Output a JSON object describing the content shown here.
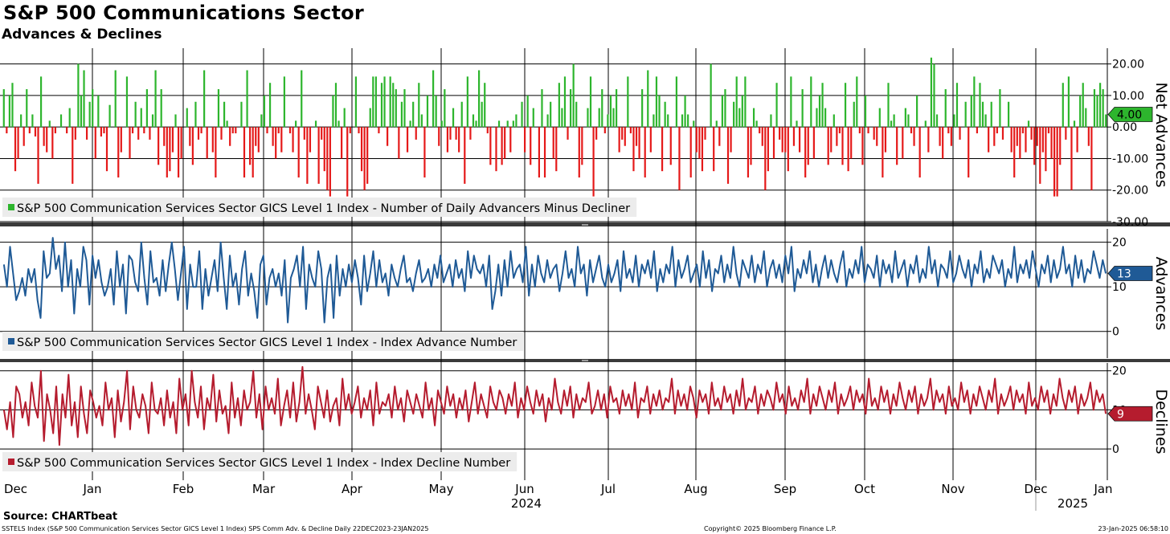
{
  "header": {
    "title": "S&P 500 Communications Sector",
    "subtitle": "Advances & Declines"
  },
  "footer": {
    "source": "Source: CHARTbeat",
    "description": "SSTELS Index (S&P 500 Communication Services Sector GICS Level 1 Index) SPS Comm Adv. & Decline  Daily 22DEC2023-23JAN2025",
    "copyright": "Copyright© 2025 Bloomberg Finance L.P.",
    "timestamp": "23-Jan-2025 06:58:10"
  },
  "colors": {
    "net_up": "#2db52d",
    "net_down": "#e51919",
    "advances": "#1f5a96",
    "declines": "#b51c2e",
    "grid": "#000000"
  },
  "chart_data": {
    "type": "line",
    "x": {
      "months": [
        "Dec",
        "Jan",
        "Feb",
        "Mar",
        "Apr",
        "May",
        "Jun",
        "Jul",
        "Aug",
        "Sep",
        "Oct",
        "Nov",
        "Dec",
        "Jan"
      ],
      "years": [
        "2024",
        "2025"
      ],
      "start_date": "22DEC2023",
      "end_date": "23JAN2025"
    },
    "panels": [
      {
        "id": "net",
        "type": "bar",
        "axis_title": "Net Advances",
        "legend": "S&P 500 Communication Services Sector GICS Level 1 Index - Number of Daily Advancers Minus Decliner",
        "ylim": [
          -30,
          25
        ],
        "ticks": [
          20,
          10,
          0,
          -10,
          -20,
          -30
        ],
        "tick_labels": [
          "20.00",
          "10.00",
          "0.00",
          "-10.00",
          "-20.00",
          "-30.00"
        ],
        "last_value": "4.00",
        "values": [
          12,
          -2,
          10,
          14,
          -14,
          -10,
          4,
          -6,
          12,
          -2,
          4,
          -3,
          -18,
          16,
          -6,
          -8,
          2,
          -10,
          -2,
          0,
          4,
          0,
          -2,
          6,
          -18,
          -4,
          20,
          10,
          18,
          -4,
          8,
          12,
          -10,
          10,
          -3,
          -2,
          -14,
          7,
          0,
          18,
          -16,
          -8,
          0,
          16,
          -10,
          -2,
          8,
          -4,
          6,
          -2,
          12,
          -4,
          4,
          18,
          -12,
          12,
          -6,
          -16,
          -14,
          -8,
          4,
          -16,
          -10,
          0,
          6,
          -6,
          -12,
          8,
          -4,
          -2,
          18,
          -10,
          0,
          -8,
          -16,
          12,
          -4,
          8,
          2,
          -6,
          -2,
          -2,
          0,
          8,
          -16,
          18,
          -12,
          -16,
          -6,
          -8,
          4,
          10,
          -2,
          14,
          -6,
          -10,
          -2,
          -8,
          16,
          0,
          -2,
          -8,
          2,
          -16,
          18,
          -4,
          -18,
          -8,
          0,
          2,
          -18,
          -4,
          -14,
          -20,
          -22,
          10,
          14,
          2,
          -10,
          6,
          -22,
          -2,
          0,
          16,
          -2,
          -14,
          -20,
          -18,
          6,
          16,
          16,
          -2,
          14,
          16,
          -6,
          16,
          14,
          12,
          -10,
          8,
          12,
          -8,
          2,
          8,
          -4,
          14,
          4,
          -16,
          10,
          0,
          18,
          10,
          -6,
          2,
          12,
          -8,
          -4,
          6,
          -4,
          -8,
          8,
          -18,
          16,
          -4,
          4,
          2,
          18,
          8,
          14,
          -2,
          -12,
          0,
          -14,
          2,
          -12,
          -10,
          2,
          -8,
          2,
          4,
          0,
          8,
          -8,
          10,
          -12,
          6,
          0,
          -16,
          12,
          -16,
          4,
          8,
          -10,
          -14,
          14,
          6,
          16,
          -4,
          12,
          20,
          8,
          -16,
          -12,
          0,
          6,
          16,
          -22,
          -4,
          6,
          12,
          -2,
          4,
          10,
          6,
          12,
          -8,
          -4,
          -6,
          16,
          -2,
          -14,
          -6,
          -10,
          12,
          -16,
          18,
          -8,
          4,
          16,
          10,
          -14,
          8,
          4,
          -12,
          0,
          16,
          -20,
          4,
          10,
          4,
          -16,
          2,
          -8,
          -10,
          -14,
          -4,
          0,
          20,
          -14,
          2,
          -6,
          10,
          12,
          -18,
          -8,
          8,
          16,
          6,
          10,
          16,
          -16,
          -12,
          6,
          2,
          -2,
          -6,
          -20,
          -14,
          4,
          -10,
          14,
          -4,
          -8,
          -8,
          -14,
          16,
          -6,
          2,
          -8,
          12,
          -16,
          -12,
          16,
          -10,
          6,
          10,
          14,
          6,
          -12,
          -8,
          4,
          -6,
          -2,
          -12,
          14,
          -14,
          -10,
          8,
          16,
          -2,
          -12,
          10,
          -2,
          0,
          -4,
          -6,
          6,
          -16,
          -8,
          14,
          2,
          4,
          -12,
          0,
          -10,
          6,
          4,
          -2,
          -6,
          10,
          -16,
          0,
          2,
          -8,
          22,
          20,
          4,
          -6,
          -10,
          12,
          -2,
          -6,
          4,
          14,
          -4,
          0,
          8,
          -16,
          10,
          16,
          -2,
          14,
          8,
          4,
          -8,
          8,
          -6,
          -2,
          12,
          -4,
          0,
          8,
          -8,
          -16,
          -6,
          -10,
          -2,
          -8,
          2,
          -4,
          -12,
          -6,
          -18,
          -8,
          -14,
          -2,
          -10,
          -22,
          -22,
          -12,
          14,
          -4,
          16,
          -20,
          2,
          -8,
          10,
          14,
          6,
          -6,
          -20,
          12,
          10,
          14,
          12,
          4
        ]
      },
      {
        "id": "adv",
        "type": "line",
        "axis_title": "Advances",
        "legend": "S&P 500 Communication Services Sector GICS Level 1 Index - Index Advance Number",
        "ylim": [
          -6,
          23
        ],
        "ticks": [
          20,
          10,
          0
        ],
        "tick_labels": [
          "20",
          "10",
          "0"
        ],
        "last_value": "13",
        "values": [
          15,
          10,
          19,
          13,
          7,
          9,
          12,
          8,
          14,
          11,
          14,
          7,
          3,
          18,
          12,
          13,
          21,
          14,
          17,
          9,
          20,
          10,
          16,
          4,
          14,
          10,
          19,
          16,
          6,
          17,
          12,
          16,
          11,
          8,
          10,
          14,
          6,
          18,
          10,
          15,
          4,
          17,
          16,
          11,
          9,
          20,
          12,
          6,
          18,
          11,
          12,
          8,
          16,
          9,
          15,
          20,
          14,
          7,
          13,
          19,
          5,
          15,
          10,
          10,
          18,
          5,
          14,
          8,
          12,
          16,
          9,
          20,
          12,
          5,
          17,
          10,
          13,
          6,
          14,
          18,
          8,
          13,
          9,
          3,
          15,
          17,
          6,
          12,
          14,
          10,
          13,
          8,
          16,
          2,
          12,
          14,
          17,
          10,
          19,
          5,
          15,
          12,
          10,
          18,
          14,
          2,
          12,
          15,
          3,
          17,
          8,
          14,
          10,
          15,
          11,
          16,
          12,
          6,
          17,
          9,
          13,
          18,
          10,
          16,
          11,
          13,
          8,
          15,
          12,
          10,
          14,
          17,
          11,
          12,
          9,
          13,
          16,
          11,
          12,
          14,
          10,
          15,
          12,
          17,
          11,
          13,
          15,
          10,
          16,
          12,
          14,
          9,
          18,
          12,
          17,
          14,
          13,
          15,
          10,
          17,
          5,
          9,
          15,
          8,
          16,
          10,
          18,
          12,
          14,
          15,
          11,
          19,
          8,
          15,
          10,
          17,
          13,
          11,
          16,
          12,
          14,
          15,
          9,
          13,
          18,
          12,
          14,
          10,
          19,
          13,
          15,
          8,
          16,
          11,
          14,
          17,
          12,
          10,
          15,
          11,
          13,
          16,
          9,
          18,
          12,
          14,
          11,
          17,
          10,
          15,
          13,
          16,
          12,
          18,
          9,
          14,
          11,
          15,
          13,
          19,
          10,
          16,
          12,
          14,
          17,
          11,
          13,
          15,
          10,
          18,
          12,
          16,
          9,
          14,
          13,
          17,
          11,
          15,
          12,
          19,
          13,
          10,
          16,
          14,
          12,
          17,
          11,
          15,
          13,
          18,
          10,
          14,
          16,
          12,
          15,
          11,
          17,
          13,
          19,
          9,
          14,
          12,
          16,
          13,
          18,
          11,
          15,
          10,
          14,
          17,
          12,
          16,
          13,
          11,
          15,
          18,
          10,
          14,
          12,
          16,
          13,
          19,
          11,
          15,
          14,
          12,
          17,
          10,
          16,
          13,
          15,
          11,
          18,
          12,
          14,
          16,
          10,
          15,
          13,
          17,
          11,
          14,
          12,
          19,
          13,
          16,
          10,
          15,
          14,
          12,
          18,
          11,
          13,
          17,
          14,
          12,
          16,
          10,
          15,
          13,
          18,
          11,
          14,
          12,
          17,
          15,
          13,
          16,
          10,
          14,
          12,
          19,
          11,
          15,
          13,
          16,
          12,
          18,
          14,
          10,
          15,
          13,
          17,
          11,
          16,
          12,
          14,
          19,
          13,
          15,
          10,
          17,
          12,
          16,
          11,
          14,
          13,
          18,
          15,
          12,
          16,
          13
        ]
      },
      {
        "id": "dec",
        "type": "line",
        "axis_title": "Declines",
        "legend": "S&P 500 Communication Services Sector GICS Level 1 Index - Index Decline Number",
        "ylim": [
          -8,
          22
        ],
        "ticks": [
          20,
          10,
          0
        ],
        "tick_labels": [
          "20",
          "10",
          "0"
        ],
        "last_value": "9",
        "values": [
          10,
          5,
          12,
          3,
          16,
          14,
          8,
          12,
          6,
          17,
          11,
          8,
          20,
          2,
          14,
          10,
          4,
          16,
          1,
          14,
          8,
          19,
          6,
          12,
          3,
          16,
          9,
          4,
          15,
          12,
          8,
          11,
          6,
          17,
          10,
          13,
          3,
          15,
          7,
          12,
          20,
          5,
          16,
          10,
          8,
          14,
          11,
          4,
          17,
          10,
          9,
          13,
          6,
          15,
          8,
          12,
          4,
          18,
          10,
          14,
          6,
          20,
          12,
          8,
          16,
          5,
          13,
          10,
          19,
          7,
          15,
          9,
          11,
          4,
          17,
          8,
          13,
          6,
          15,
          10,
          12,
          20,
          8,
          14,
          5,
          16,
          10,
          13,
          9,
          18,
          6,
          11,
          15,
          8,
          17,
          7,
          12,
          21,
          9,
          14,
          10,
          5,
          16,
          12,
          8,
          15,
          7,
          11,
          13,
          6,
          18,
          10,
          14,
          9,
          12,
          16,
          8,
          13,
          10,
          15,
          6,
          17,
          9,
          12,
          11,
          14,
          8,
          16,
          10,
          13,
          7,
          15,
          12,
          9,
          14,
          11,
          8,
          17,
          10,
          13,
          6,
          15,
          12,
          9,
          16,
          11,
          14,
          8,
          13,
          10,
          15,
          7,
          12,
          17,
          9,
          14,
          11,
          8,
          16,
          12,
          10,
          15,
          13,
          9,
          14,
          11,
          17,
          8,
          13,
          10,
          16,
          12,
          9,
          15,
          11,
          14,
          7,
          13,
          10,
          18,
          12,
          9,
          15,
          11,
          16,
          8,
          14,
          10,
          13,
          12,
          17,
          9,
          11,
          15,
          10,
          14,
          8,
          16,
          12,
          13,
          9,
          15,
          11,
          14,
          10,
          17,
          8,
          13,
          12,
          16,
          9,
          14,
          11,
          15,
          10,
          13,
          12,
          18,
          9,
          15,
          11,
          14,
          10,
          16,
          13,
          8,
          15,
          12,
          14,
          9,
          17,
          11,
          13,
          10,
          16,
          12,
          14,
          9,
          15,
          11,
          18,
          10,
          13,
          12,
          16,
          9,
          14,
          11,
          15,
          13,
          10,
          17,
          12,
          14,
          9,
          16,
          11,
          13,
          10,
          15,
          12,
          18,
          9,
          14,
          11,
          16,
          13,
          10,
          15,
          12,
          17,
          9,
          14,
          11,
          13,
          16,
          10,
          15,
          12,
          14,
          9,
          18,
          11,
          13,
          10,
          16,
          12,
          15,
          9,
          14,
          11,
          17,
          13,
          10,
          15,
          12,
          16,
          9,
          14,
          11,
          13,
          18,
          10,
          15,
          12,
          14,
          9,
          16,
          11,
          13,
          10,
          17,
          12,
          15,
          9,
          14,
          11,
          16,
          13,
          10,
          15,
          12,
          18,
          9,
          14,
          11,
          13,
          16,
          10,
          15,
          12,
          14,
          9,
          17,
          11,
          13,
          10,
          16,
          12,
          15,
          9,
          14,
          11,
          18,
          13,
          10,
          15,
          12,
          16,
          9,
          14,
          11,
          13,
          17,
          10,
          15,
          12,
          14,
          9
        ]
      }
    ]
  }
}
